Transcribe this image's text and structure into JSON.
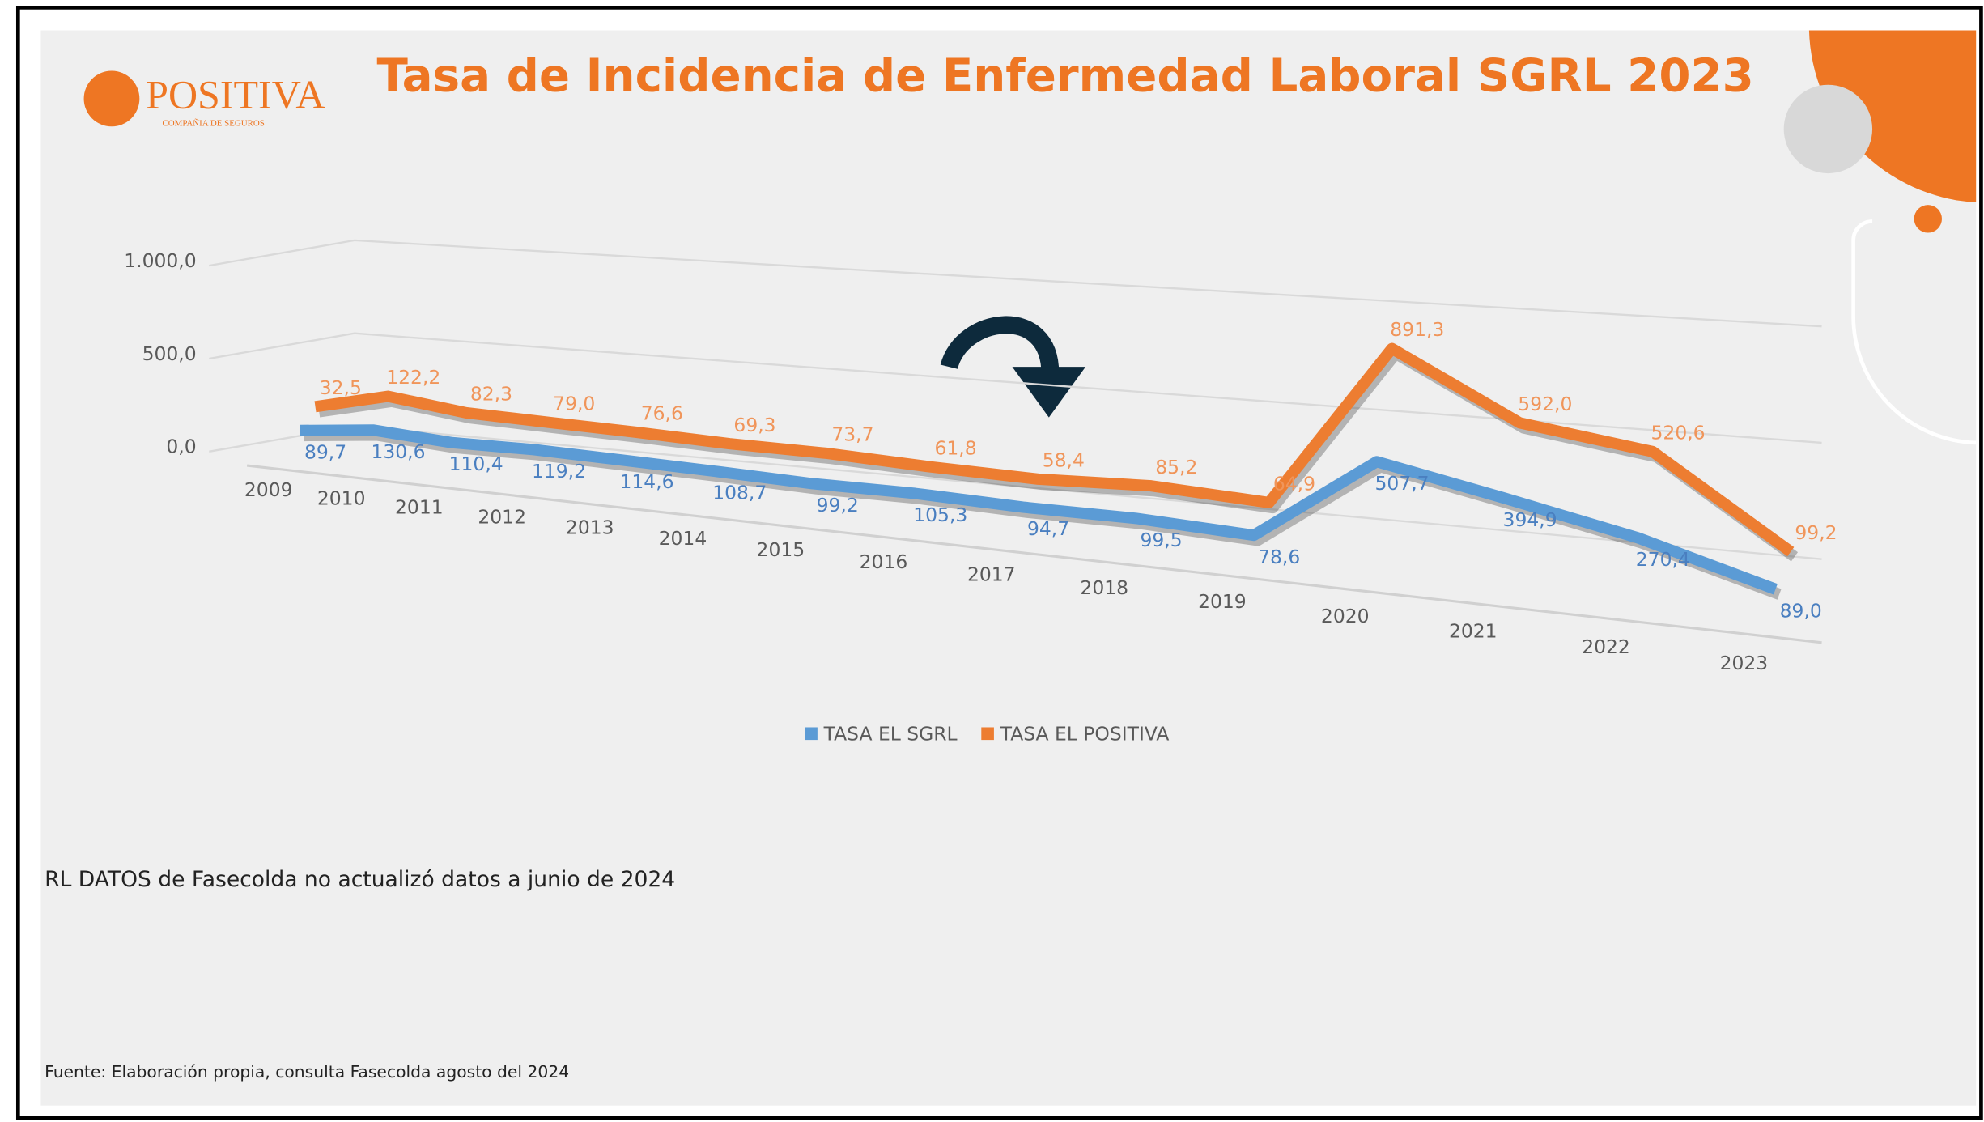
{
  "logo": {
    "name": "POSITIVA",
    "tagline": "COMPAÑIA DE SEGUROS"
  },
  "chart_data": {
    "type": "line3d",
    "title": "Tasa de Incidencia de Enfermedad Laboral SGRL 2023",
    "categories": [
      "2009",
      "2010",
      "2011",
      "2012",
      "2013",
      "2014",
      "2015",
      "2016",
      "2017",
      "2018",
      "2019",
      "2020",
      "2021",
      "2022",
      "2023"
    ],
    "series": [
      {
        "name": "TASA EL SGRL",
        "color": "#5b9bd5",
        "label_color": "#4a7fc0",
        "values": [
          89.7,
          130.6,
          110.4,
          119.2,
          114.6,
          108.7,
          99.2,
          105.3,
          94.7,
          99.5,
          78.6,
          507.7,
          394.9,
          270.4,
          89.0
        ],
        "value_labels": [
          "89,7",
          "130,6",
          "110,4",
          "119,2",
          "114,6",
          "108,7",
          "99,2",
          "105,3",
          "94,7",
          "99,5",
          "78,6",
          "507,7",
          "394,9",
          "270,4",
          "89,0"
        ]
      },
      {
        "name": "TASA EL POSITIVA",
        "color": "#ed7d31",
        "label_color": "#f0955a",
        "values": [
          32.5,
          122.2,
          82.3,
          79.0,
          76.6,
          69.3,
          73.7,
          61.8,
          58.4,
          85.2,
          64.9,
          891.3,
          592.0,
          520.6,
          99.2
        ],
        "value_labels": [
          "32,5",
          "122,2",
          "82,3",
          "79,0",
          "76,6",
          "69,3",
          "73,7",
          "61,8",
          "58,4",
          "85,2",
          "64,9",
          "891,3",
          "592,0",
          "520,6",
          "99,2"
        ]
      }
    ],
    "ylim": [
      0,
      1000
    ],
    "yticks": [
      {
        "value": 0,
        "label": "0,0"
      },
      {
        "value": 500,
        "label": "500,0"
      },
      {
        "value": 1000,
        "label": "1.000,0"
      }
    ],
    "grid": true,
    "legend": "bottom"
  },
  "note": "RL DATOS de Fasecolda no actualizó datos a junio de 2024",
  "source": "Fuente: Elaboración  propia, consulta Fasecolda agosto del 2024"
}
